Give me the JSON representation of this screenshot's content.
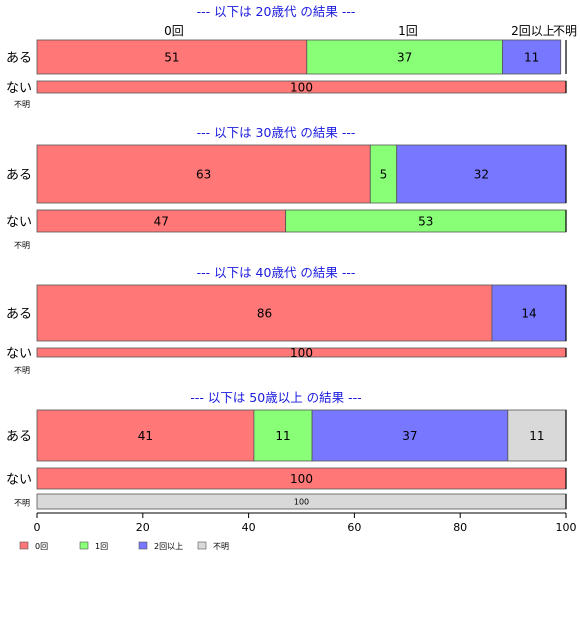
{
  "chart_data": {
    "type": "bar",
    "orientation": "horizontal",
    "stacked": true,
    "categories": [
      "0回",
      "1回",
      "2回以上",
      "不明"
    ],
    "colors": {
      "0回": "#ff7777",
      "1回": "#88ff77",
      "2回以上": "#7777ff",
      "不明": "#d9d9d9",
      "title": "#1a1adf"
    },
    "xlim": [
      0,
      100
    ],
    "xticks": [
      0,
      20,
      40,
      60,
      80,
      100
    ],
    "top_category_labels": [
      "0回",
      "1回",
      "2回以上",
      "不明"
    ],
    "panels": [
      {
        "title": "--- 以下は 20歳代 の結果 ---",
        "rows": [
          {
            "label": "ある",
            "values": [
              51,
              37,
              11,
              0
            ]
          },
          {
            "label": "ない",
            "values": [
              100,
              0,
              0,
              0
            ]
          },
          {
            "label": "不明",
            "values": [
              0,
              0,
              0,
              0
            ]
          }
        ]
      },
      {
        "title": "--- 以下は 30歳代 の結果 ---",
        "rows": [
          {
            "label": "ある",
            "values": [
              63,
              5,
              32,
              0
            ]
          },
          {
            "label": "ない",
            "values": [
              47,
              53,
              0,
              0
            ]
          },
          {
            "label": "不明",
            "values": [
              0,
              0,
              0,
              0
            ]
          }
        ]
      },
      {
        "title": "--- 以下は 40歳代 の結果 ---",
        "rows": [
          {
            "label": "ある",
            "values": [
              86,
              0,
              14,
              0
            ]
          },
          {
            "label": "ない",
            "values": [
              100,
              0,
              0,
              0
            ]
          },
          {
            "label": "不明",
            "values": [
              0,
              0,
              0,
              0
            ]
          }
        ]
      },
      {
        "title": "--- 以下は 50歳以上 の結果 ---",
        "rows": [
          {
            "label": "ある",
            "values": [
              41,
              11,
              37,
              11
            ]
          },
          {
            "label": "ない",
            "values": [
              100,
              0,
              0,
              0
            ]
          },
          {
            "label": "不明",
            "values": [
              0,
              0,
              0,
              100
            ]
          }
        ]
      }
    ],
    "legend": {
      "placement": "bottom-left",
      "entries": [
        "0回",
        "1回",
        "2回以上",
        "不明"
      ]
    }
  }
}
